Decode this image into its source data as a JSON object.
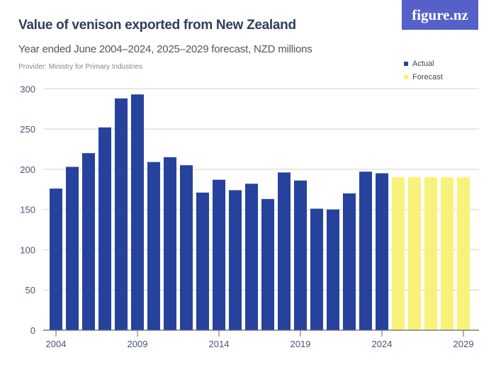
{
  "header": {
    "title": "Value of venison exported from New Zealand",
    "subtitle": "Year ended June 2004–2024, 2025–2029 forecast, NZD millions",
    "provider": "Provider: Ministry for Primary Industries",
    "logo": "figure.nz"
  },
  "colors": {
    "actual": "#26429c",
    "forecast": "#f9f27a",
    "logo_bg": "#5560c8",
    "grid": "#e0e0e0"
  },
  "chart_data": {
    "type": "bar",
    "title": "Value of venison exported from New Zealand",
    "subtitle": "Year ended June 2004–2024, 2025–2029 forecast, NZD millions",
    "categories": [
      2004,
      2005,
      2006,
      2007,
      2008,
      2009,
      2010,
      2011,
      2012,
      2013,
      2014,
      2015,
      2016,
      2017,
      2018,
      2019,
      2020,
      2021,
      2022,
      2023,
      2024,
      2025,
      2026,
      2027,
      2028,
      2029
    ],
    "series": [
      {
        "name": "Actual",
        "values": [
          176,
          203,
          220,
          252,
          288,
          293,
          209,
          215,
          205,
          171,
          187,
          174,
          182,
          163,
          196,
          186,
          151,
          150,
          170,
          197,
          195,
          null,
          null,
          null,
          null,
          null
        ]
      },
      {
        "name": "Forecast",
        "values": [
          null,
          null,
          null,
          null,
          null,
          null,
          null,
          null,
          null,
          null,
          null,
          null,
          null,
          null,
          null,
          null,
          null,
          null,
          null,
          null,
          null,
          190,
          190,
          190,
          190,
          190
        ]
      }
    ],
    "ylim": [
      0,
      300
    ],
    "yticks": [
      0,
      50,
      100,
      150,
      200,
      250,
      300
    ],
    "xticks": [
      2004,
      2009,
      2014,
      2019,
      2024,
      2029
    ],
    "grid": true,
    "legend": "top-right"
  }
}
